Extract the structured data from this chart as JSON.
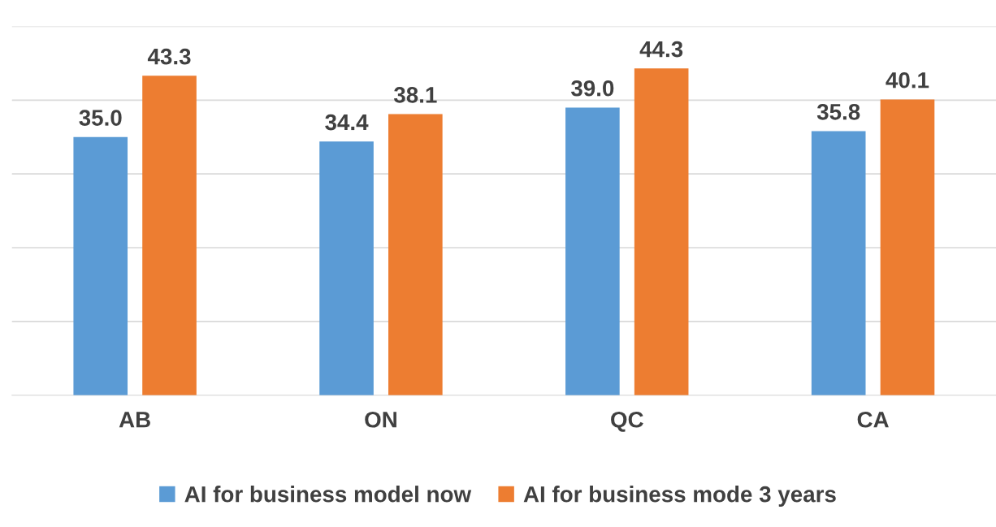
{
  "chart_data": {
    "type": "bar",
    "categories": [
      "AB",
      "ON",
      "QC",
      "CA"
    ],
    "series": [
      {
        "name": "AI for business model now",
        "color": "#5b9bd5",
        "values": [
          35.0,
          34.4,
          39.0,
          35.8
        ],
        "value_labels": [
          "35.0",
          "34.4",
          "39.0",
          "35.8"
        ]
      },
      {
        "name": "AI for business mode 3 years",
        "color": "#ed7d31",
        "values": [
          43.3,
          38.1,
          44.3,
          40.1
        ],
        "value_labels": [
          "43.3",
          "38.1",
          "44.3",
          "40.1"
        ]
      }
    ],
    "ylim": [
      0,
      50
    ],
    "yticks": [
      {
        "value": 0,
        "label": null
      },
      {
        "value": 10,
        "label": null
      },
      {
        "value": 20,
        "label": null
      },
      {
        "value": 30,
        "label": null
      },
      {
        "value": 40,
        "label": null
      },
      {
        "value": 50,
        "label": null
      }
    ],
    "tick_labels": "x",
    "grid": "y",
    "legend": "bottom"
  }
}
